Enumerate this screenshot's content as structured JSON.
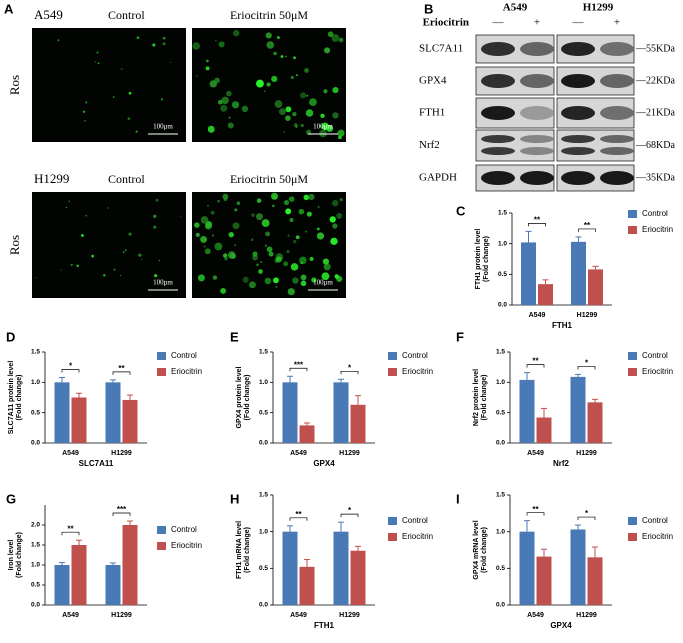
{
  "panels": {
    "a": {
      "label": "A",
      "groups": [
        {
          "cell_line": "A549",
          "control": "Control",
          "treatment": "Eriocitrin 50μM",
          "ylabel": "Ros",
          "scale_bars": [
            "100μm",
            "100μm"
          ]
        },
        {
          "cell_line": "H1299",
          "control": "Control",
          "treatment": "Eriocitrin 50μM",
          "ylabel": "Ros",
          "scale_bars": [
            "100μm",
            "100μm"
          ]
        }
      ]
    },
    "b": {
      "label": "B",
      "cell_lines": [
        "A549",
        "H1299"
      ],
      "treatment": "Eriocitrin",
      "lanes": [
        "—",
        "+",
        "—",
        "+"
      ],
      "proteins": [
        {
          "name": "SLC7A11",
          "size": "—55KDa"
        },
        {
          "name": "GPX4",
          "size": "—22KDa"
        },
        {
          "name": "FTH1",
          "size": "—21KDa"
        },
        {
          "name": "Nrf2",
          "size": "—68KDa"
        },
        {
          "name": "GAPDH",
          "size": "—35KDa"
        }
      ]
    }
  },
  "chart_data": [
    {
      "type": "bar",
      "label": "C",
      "ylabel": [
        "FTH1 protein level",
        "(Fold change)"
      ],
      "xlabel": "FTH1",
      "categories": [
        "A549",
        "H1299"
      ],
      "series": [
        {
          "name": "Control",
          "color": "#4a7ab5",
          "values": [
            1.02,
            1.03
          ],
          "errors": [
            0.18,
            0.08
          ]
        },
        {
          "name": "Eriocitrin",
          "color": "#c0504d",
          "values": [
            0.34,
            0.58
          ],
          "errors": [
            0.07,
            0.05
          ]
        }
      ],
      "significance": [
        "**",
        "**"
      ],
      "ylim": [
        0,
        1.5
      ],
      "yticks": [
        {
          "value": 0,
          "label": "0.0"
        },
        0.5,
        {
          "value": 1,
          "label": "1.0"
        },
        1.5
      ],
      "legend": "right"
    },
    {
      "type": "bar",
      "label": "D",
      "ylabel": [
        "SLC7A11 protein level",
        "(Fold change)"
      ],
      "xlabel": "SLC7A11",
      "categories": [
        "A549",
        "H1299"
      ],
      "series": [
        {
          "name": "Control",
          "color": "#4a7ab5",
          "values": [
            1.0,
            1.0
          ],
          "errors": [
            0.08,
            0.04
          ]
        },
        {
          "name": "Eriocitrin",
          "color": "#c0504d",
          "values": [
            0.75,
            0.71
          ],
          "errors": [
            0.07,
            0.08
          ]
        }
      ],
      "significance": [
        "*",
        "**"
      ],
      "ylim": [
        0,
        1.5
      ],
      "yticks": [
        {
          "value": 0,
          "label": "0.0"
        },
        0.5,
        {
          "value": 1,
          "label": "1.0"
        },
        1.5
      ],
      "legend": "right"
    },
    {
      "type": "bar",
      "label": "E",
      "ylabel": [
        "GPX4 protein level",
        "(Fold change)"
      ],
      "xlabel": "GPX4",
      "categories": [
        "A549",
        "H1299"
      ],
      "series": [
        {
          "name": "Control",
          "color": "#4a7ab5",
          "values": [
            1.0,
            1.0
          ],
          "errors": [
            0.1,
            0.05
          ]
        },
        {
          "name": "Eriocitrin",
          "color": "#c0504d",
          "values": [
            0.29,
            0.63
          ],
          "errors": [
            0.04,
            0.15
          ]
        }
      ],
      "significance": [
        "***",
        "*"
      ],
      "ylim": [
        0,
        1.5
      ],
      "yticks": [
        {
          "value": 0,
          "label": "0.0"
        },
        0.5,
        {
          "value": 1,
          "label": "1.0"
        },
        1.5
      ],
      "legend": "right"
    },
    {
      "type": "bar",
      "label": "F",
      "ylabel": [
        "Nrf2 protein level",
        "(Fold change)"
      ],
      "xlabel": "Nrf2",
      "categories": [
        "A549",
        "H1299"
      ],
      "series": [
        {
          "name": "Control",
          "color": "#4a7ab5",
          "values": [
            1.04,
            1.09
          ],
          "errors": [
            0.12,
            0.04
          ]
        },
        {
          "name": "Eriocitrin",
          "color": "#c0504d",
          "values": [
            0.42,
            0.67
          ],
          "errors": [
            0.15,
            0.05
          ]
        }
      ],
      "significance": [
        "**",
        "*"
      ],
      "ylim": [
        0,
        1.5
      ],
      "yticks": [
        {
          "value": 0,
          "label": "0.0"
        },
        0.5,
        {
          "value": 1,
          "label": "1.0"
        },
        1.5
      ],
      "legend": "right"
    },
    {
      "type": "bar",
      "label": "G",
      "ylabel": [
        "Iron level",
        "(Fold change)"
      ],
      "categories": [
        "A549",
        "H1299"
      ],
      "series": [
        {
          "name": "Control",
          "color": "#4a7ab5",
          "values": [
            1.0,
            1.0
          ],
          "errors": [
            0.06,
            0.05
          ]
        },
        {
          "name": "Eriocitrin",
          "color": "#c0504d",
          "values": [
            1.5,
            2.0
          ],
          "errors": [
            0.12,
            0.1
          ]
        }
      ],
      "significance": [
        "**",
        "***"
      ],
      "ylim": [
        0,
        2.5
      ],
      "yticks": [
        {
          "value": 0,
          "label": "0.0"
        },
        0.5,
        {
          "value": 1,
          "label": "1.0"
        },
        1.5,
        {
          "value": 2,
          "label": "2.0"
        }
      ],
      "legend": "right"
    },
    {
      "type": "bar",
      "label": "H",
      "ylabel": [
        "FTH1 mRNA level",
        "(Fold change)"
      ],
      "xlabel": "FTH1",
      "categories": [
        "A549",
        "H1299"
      ],
      "series": [
        {
          "name": "Control",
          "color": "#4a7ab5",
          "values": [
            1.0,
            1.0
          ],
          "errors": [
            0.08,
            0.13
          ]
        },
        {
          "name": "Eriocitrin",
          "color": "#c0504d",
          "values": [
            0.52,
            0.74
          ],
          "errors": [
            0.1,
            0.06
          ]
        }
      ],
      "significance": [
        "**",
        "*"
      ],
      "ylim": [
        0,
        1.5
      ],
      "yticks": [
        {
          "value": 0,
          "label": "0.0"
        },
        0.5,
        {
          "value": 1,
          "label": "1.0"
        },
        1.5
      ],
      "legend": "right"
    },
    {
      "type": "bar",
      "label": "I",
      "ylabel": [
        "GPX4 mRNA level",
        "(Fold change)"
      ],
      "xlabel": "GPX4",
      "categories": [
        "A549",
        "H1299"
      ],
      "series": [
        {
          "name": "Control",
          "color": "#4a7ab5",
          "values": [
            1.0,
            1.03
          ],
          "errors": [
            0.15,
            0.06
          ]
        },
        {
          "name": "Eriocitrin",
          "color": "#c0504d",
          "values": [
            0.66,
            0.65
          ],
          "errors": [
            0.1,
            0.14
          ]
        }
      ],
      "significance": [
        "**",
        "*"
      ],
      "ylim": [
        0,
        1.5
      ],
      "yticks": [
        {
          "value": 0,
          "label": "0.0"
        },
        0.5,
        {
          "value": 1,
          "label": "1.0"
        },
        1.5
      ],
      "legend": "right"
    }
  ]
}
